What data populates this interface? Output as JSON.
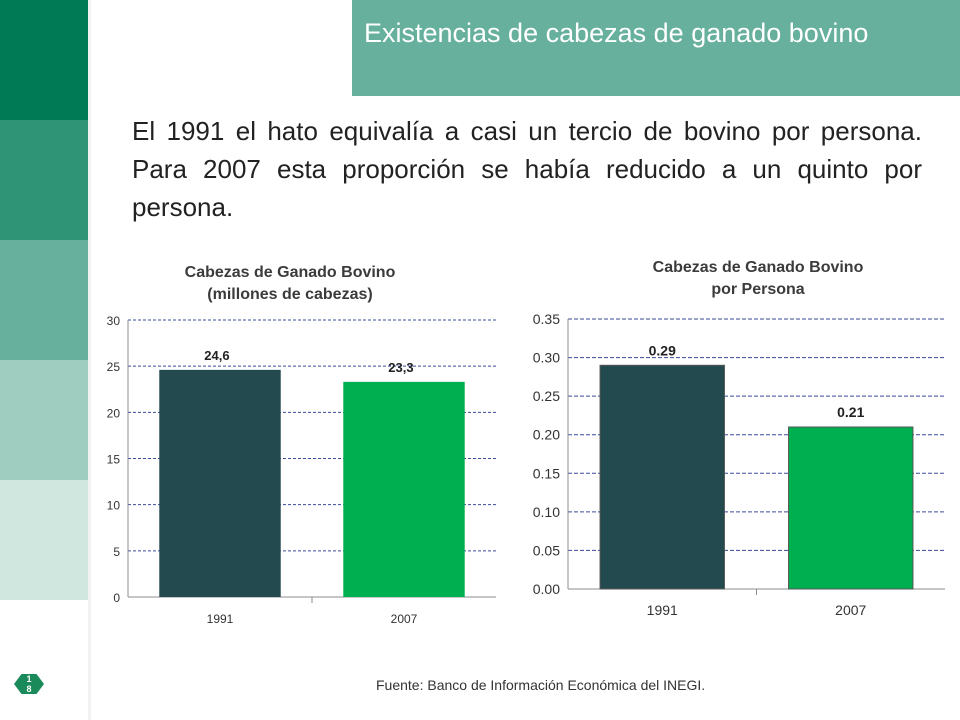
{
  "header": {
    "title": "Existencias de cabezas de ganado bovino"
  },
  "lead_text": "El 1991 el hato equivalía a casi un tercio de bovino por persona.  Para 2007 esta proporción se había reducido a un quinto por persona.",
  "page_number": "18",
  "footer": {
    "source": "Fuente: Banco de Información Económica del INEGI."
  },
  "colors": {
    "band": [
      "#007a55",
      "#2e9475",
      "#66b09d",
      "#9fcdc0",
      "#cfe7df",
      "#ffffff"
    ],
    "bar_1991": "#234a4f",
    "bar_2007": "#00b050",
    "grid": "#3b4a9a"
  },
  "chart_data": [
    {
      "type": "bar",
      "title": "Cabezas de Ganado Bovino (millones de cabezas)",
      "categories": [
        "1991",
        "2007"
      ],
      "values": [
        24.6,
        23.3
      ],
      "data_labels": [
        "24,6",
        "23,3"
      ],
      "ylim": [
        0,
        30
      ],
      "yticks": [
        "0",
        "5",
        "10",
        "15",
        "20",
        "25",
        "30"
      ],
      "grid": true,
      "legend": "none"
    },
    {
      "type": "bar",
      "title": "Cabezas de Ganado Bovino por Persona",
      "categories": [
        "1991",
        "2007"
      ],
      "values": [
        0.29,
        0.21
      ],
      "data_labels": [
        "0.29",
        "0.21"
      ],
      "ylim": [
        0,
        0.35
      ],
      "yticks": [
        "0.00",
        "0.05",
        "0.10",
        "0.15",
        "0.20",
        "0.25",
        "0.30",
        "0.35"
      ],
      "grid": true,
      "legend": "none"
    }
  ]
}
